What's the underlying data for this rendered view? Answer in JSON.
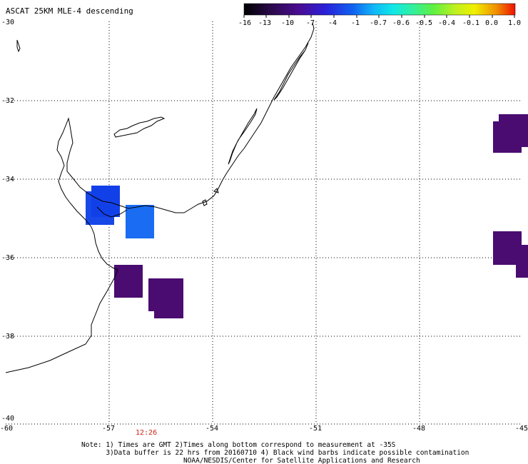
{
  "title": "ASCAT 25KM MLE-4 descending",
  "colorbar": {
    "labels": [
      "-16",
      "-13",
      "-10",
      "-7",
      "-4",
      "-1",
      "-0.7",
      "-0.6",
      "-0.5",
      "-0.4",
      "-0.1",
      "0.0",
      "1.0"
    ],
    "colors": [
      "#2a0030",
      "#4a0c70",
      "#3a1aa8",
      "#2030e0",
      "#1060f0",
      "#10a0f8",
      "#10e0f0",
      "#30f0a0",
      "#60f040",
      "#b0f020",
      "#f0f000",
      "#f0a000",
      "#f02000"
    ]
  },
  "axes": {
    "x_ticks": [
      "-60",
      "-57",
      "-54",
      "-51",
      "-48",
      "-45"
    ],
    "y_ticks": [
      "-30",
      "-32",
      "-34",
      "-36",
      "-38",
      "-40"
    ]
  },
  "time_label": "12:26",
  "note_lines": [
    "Note: 1) Times are GMT 2)Times along bottom correspond to measurement at -35S",
    "      3)Data buffer is 22 hrs from 20160710 4) Black wind barbs indicate possible contamination",
    "                         NOAA/NESDIS/Center for Satellite Applications and Research"
  ],
  "data_cells": [
    {
      "color": "#1848e8",
      "label": "blue"
    },
    {
      "color": "#1458f0",
      "label": "blue"
    },
    {
      "color": "#1a6cf2",
      "label": "light-blue"
    },
    {
      "color": "#4a0c70",
      "label": "purple"
    },
    {
      "color": "#4a0c70",
      "label": "purple"
    },
    {
      "color": "#4a0c70",
      "label": "purple"
    },
    {
      "color": "#4a0c70",
      "label": "purple"
    }
  ]
}
